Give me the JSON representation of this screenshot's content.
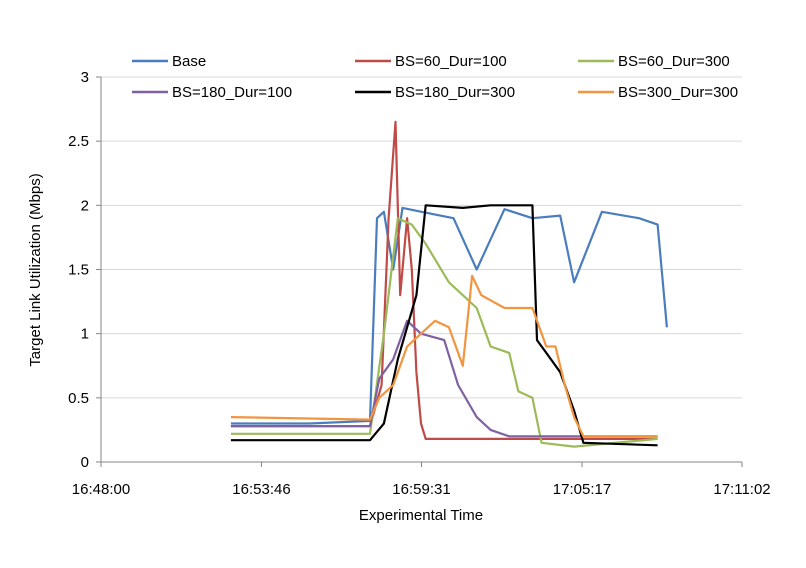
{
  "chart_data": {
    "type": "line",
    "title": "",
    "xlabel": "Experimental Time",
    "ylabel": "Target Link Utilization (Mbps)",
    "xlim": [
      "16:48:00",
      "17:11:02"
    ],
    "x_ticks": [
      "16:48:00",
      "16:53:46",
      "16:59:31",
      "17:05:17",
      "17:11:02"
    ],
    "ylim": [
      0,
      3
    ],
    "y_ticks": [
      "0",
      "0.5",
      "1",
      "1.5",
      "2",
      "2.5",
      "3"
    ],
    "grid": "horizontal",
    "legend_position": "top",
    "series": [
      {
        "name": "Base",
        "color": "#4a7dbd",
        "points": [
          [
            "16:52:40",
            0.3
          ],
          [
            "16:55:30",
            0.3
          ],
          [
            "16:57:40",
            0.32
          ],
          [
            "16:57:55",
            1.9
          ],
          [
            "16:58:10",
            1.95
          ],
          [
            "16:58:30",
            1.5
          ],
          [
            "16:58:50",
            1.98
          ],
          [
            "16:59:31",
            1.95
          ],
          [
            "17:00:40",
            1.9
          ],
          [
            "17:01:30",
            1.5
          ],
          [
            "17:02:30",
            1.97
          ],
          [
            "17:03:30",
            1.9
          ],
          [
            "17:04:30",
            1.92
          ],
          [
            "17:05:00",
            1.4
          ],
          [
            "17:06:00",
            1.95
          ],
          [
            "17:07:20",
            1.9
          ],
          [
            "17:08:00",
            1.85
          ],
          [
            "17:08:20",
            1.05
          ]
        ]
      },
      {
        "name": "BS=60_Dur=100",
        "color": "#be4b48",
        "points": [
          [
            "16:52:40",
            0.28
          ],
          [
            "16:57:40",
            0.28
          ],
          [
            "16:58:05",
            0.6
          ],
          [
            "16:58:20",
            1.9
          ],
          [
            "16:58:35",
            2.65
          ],
          [
            "16:58:45",
            1.3
          ],
          [
            "16:59:00",
            1.9
          ],
          [
            "16:59:10",
            1.5
          ],
          [
            "16:59:20",
            0.7
          ],
          [
            "16:59:30",
            0.3
          ],
          [
            "16:59:40",
            0.18
          ],
          [
            "17:05:00",
            0.18
          ],
          [
            "17:08:00",
            0.18
          ]
        ]
      },
      {
        "name": "BS=60_Dur=300",
        "color": "#9bbb59",
        "points": [
          [
            "16:52:40",
            0.22
          ],
          [
            "16:57:40",
            0.22
          ],
          [
            "16:58:10",
            1.0
          ],
          [
            "16:58:40",
            1.9
          ],
          [
            "16:59:10",
            1.85
          ],
          [
            "16:59:40",
            1.7
          ],
          [
            "17:00:30",
            1.4
          ],
          [
            "17:01:30",
            1.2
          ],
          [
            "17:02:00",
            0.9
          ],
          [
            "17:02:40",
            0.85
          ],
          [
            "17:03:00",
            0.55
          ],
          [
            "17:03:30",
            0.5
          ],
          [
            "17:03:50",
            0.15
          ],
          [
            "17:05:00",
            0.12
          ],
          [
            "17:08:00",
            0.18
          ]
        ]
      },
      {
        "name": "BS=180_Dur=100",
        "color": "#7f61a3",
        "points": [
          [
            "16:52:40",
            0.28
          ],
          [
            "16:57:40",
            0.28
          ],
          [
            "16:58:00",
            0.65
          ],
          [
            "16:58:30",
            0.8
          ],
          [
            "16:59:00",
            1.1
          ],
          [
            "16:59:30",
            1.0
          ],
          [
            "17:00:20",
            0.95
          ],
          [
            "17:00:50",
            0.6
          ],
          [
            "17:01:30",
            0.35
          ],
          [
            "17:02:00",
            0.25
          ],
          [
            "17:02:40",
            0.2
          ],
          [
            "17:05:00",
            0.2
          ],
          [
            "17:08:00",
            0.2
          ]
        ]
      },
      {
        "name": "BS=180_Dur=300",
        "color": "#000000",
        "points": [
          [
            "16:52:40",
            0.17
          ],
          [
            "16:57:40",
            0.17
          ],
          [
            "16:58:10",
            0.3
          ],
          [
            "16:58:40",
            0.8
          ],
          [
            "16:59:00",
            1.05
          ],
          [
            "16:59:20",
            1.3
          ],
          [
            "16:59:40",
            2.0
          ],
          [
            "17:01:00",
            1.98
          ],
          [
            "17:02:00",
            2.0
          ],
          [
            "17:03:30",
            2.0
          ],
          [
            "17:03:40",
            0.95
          ],
          [
            "17:04:00",
            0.85
          ],
          [
            "17:04:30",
            0.7
          ],
          [
            "17:05:00",
            0.4
          ],
          [
            "17:05:20",
            0.15
          ],
          [
            "17:08:00",
            0.13
          ]
        ]
      },
      {
        "name": "BS=300_Dur=300",
        "color": "#f3943f",
        "points": [
          [
            "16:52:40",
            0.35
          ],
          [
            "16:57:40",
            0.33
          ],
          [
            "16:58:00",
            0.5
          ],
          [
            "16:58:30",
            0.6
          ],
          [
            "16:59:00",
            0.9
          ],
          [
            "16:59:30",
            1.0
          ],
          [
            "17:00:00",
            1.1
          ],
          [
            "17:00:30",
            1.05
          ],
          [
            "17:01:00",
            0.75
          ],
          [
            "17:01:20",
            1.45
          ],
          [
            "17:01:40",
            1.3
          ],
          [
            "17:02:30",
            1.2
          ],
          [
            "17:03:30",
            1.2
          ],
          [
            "17:04:00",
            0.9
          ],
          [
            "17:04:20",
            0.9
          ],
          [
            "17:04:40",
            0.6
          ],
          [
            "17:05:00",
            0.35
          ],
          [
            "17:05:20",
            0.2
          ],
          [
            "17:08:00",
            0.2
          ]
        ]
      }
    ]
  }
}
